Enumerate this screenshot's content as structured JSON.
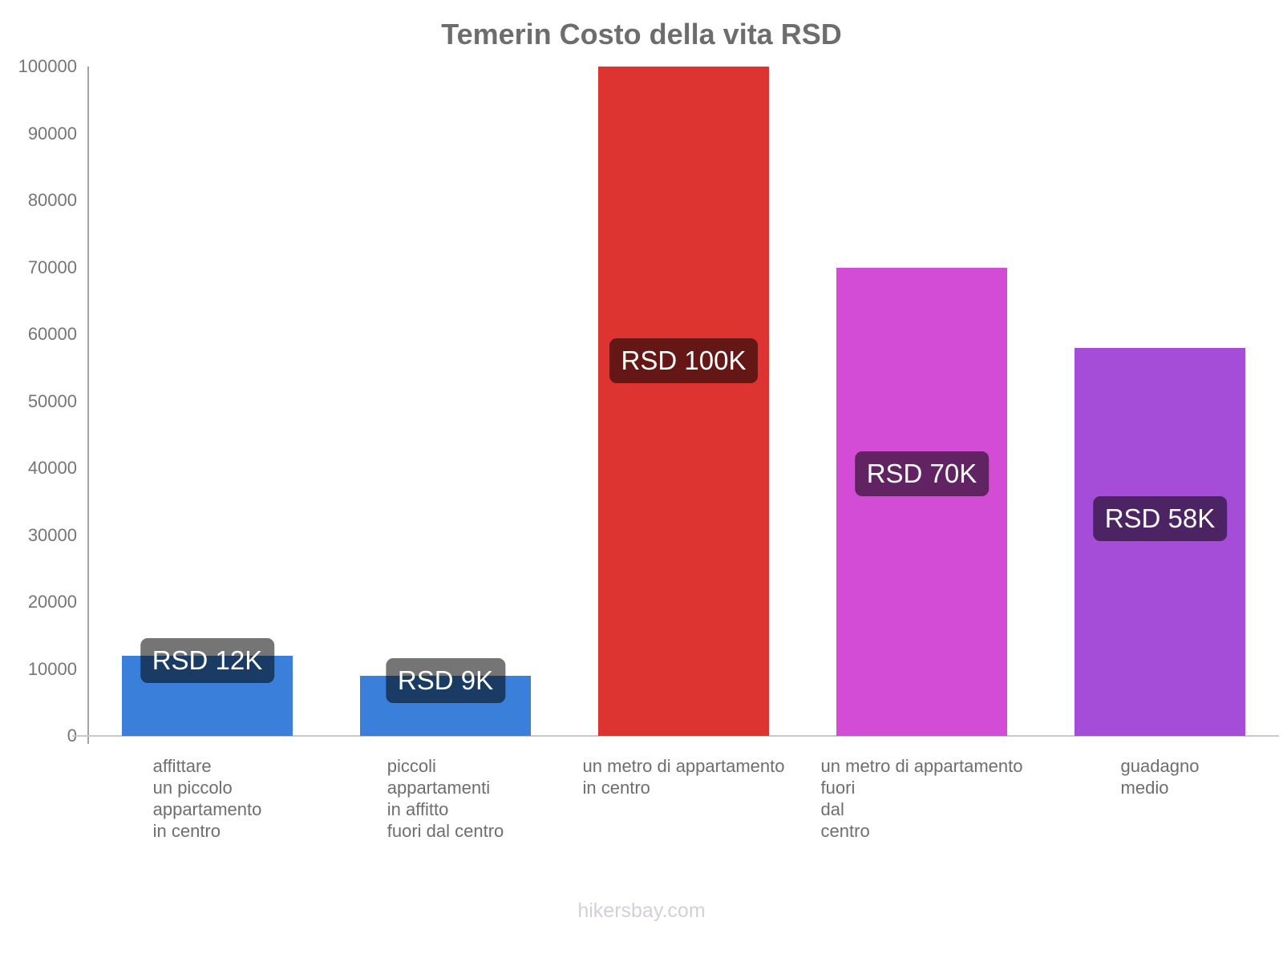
{
  "title": "Temerin Costo della vita RSD",
  "footer": "hikersbay.com",
  "chart_data": {
    "type": "bar",
    "title": "Temerin Costo della vita RSD",
    "categories": [
      [
        "affittare",
        "un piccolo",
        "appartamento",
        "in centro"
      ],
      [
        "piccoli",
        "appartamenti",
        "in affitto",
        "fuori dal centro"
      ],
      [
        "un metro di appartamento",
        "in centro"
      ],
      [
        "un metro di appartamento",
        "fuori",
        "dal",
        "centro"
      ],
      [
        "guadagno",
        "medio"
      ]
    ],
    "values": [
      12000,
      9000,
      100000,
      70000,
      58000
    ],
    "bar_value_labels": [
      "RSD 12K",
      "RSD 9K",
      "RSD 100K",
      "RSD 70K",
      "RSD 58K"
    ],
    "bar_colors": [
      "#3a80db",
      "#3a80db",
      "#dd3431",
      "#d34cd6",
      "#a54cd8"
    ],
    "value_label_text_color": "#ffffff",
    "value_label_bg": "rgba(0,0,0,0.54)",
    "ylabel": "",
    "xlabel": "",
    "ylim": [
      0,
      100000
    ],
    "ytick_step": 10000,
    "yticks": [
      0,
      10000,
      20000,
      30000,
      40000,
      50000,
      60000,
      70000,
      80000,
      90000,
      100000
    ],
    "grid": false,
    "legend": false,
    "axis_color": "#a3a3a3",
    "baseline_color": "#c9c9c9",
    "title_color": "#6d6d6d",
    "tick_label_color": "#757575"
  }
}
